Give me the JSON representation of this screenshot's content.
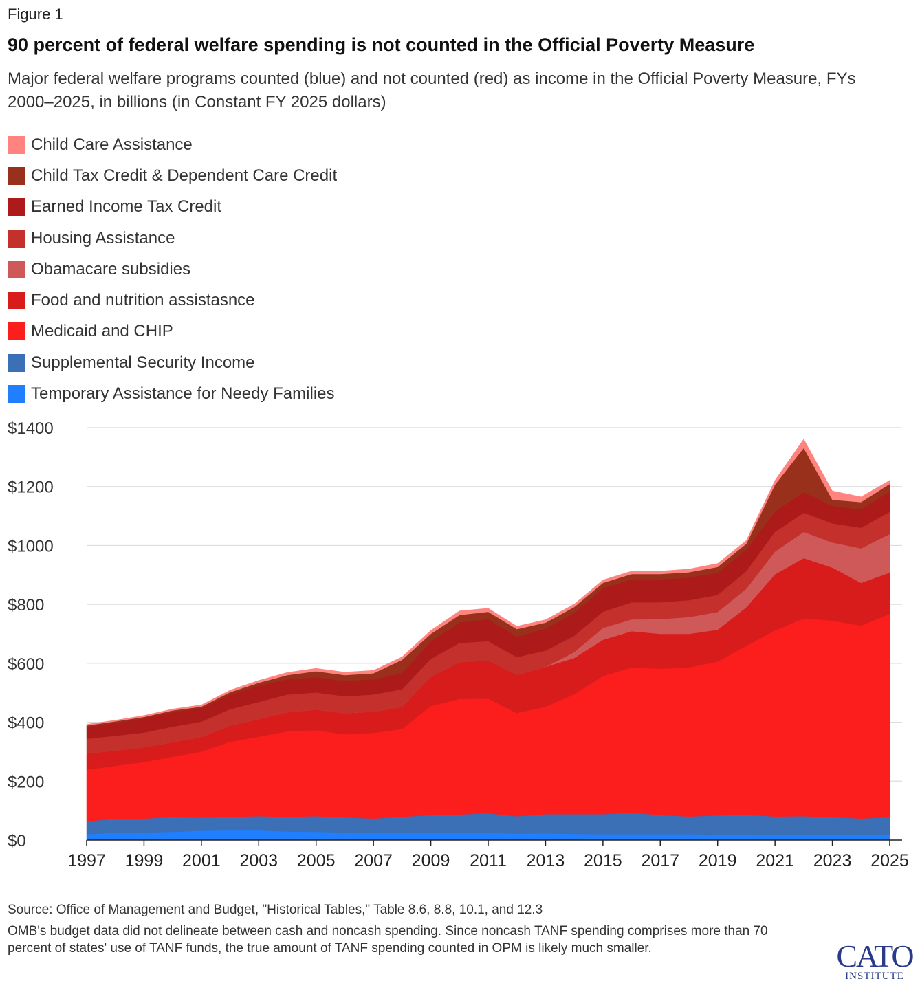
{
  "figure_label": "Figure 1",
  "title": "90 percent of federal welfare spending is not counted in the Official Poverty Measure",
  "subtitle": "Major federal welfare programs counted (blue) and not counted (red) as income in the Official Poverty Measure, FYs 2000–2025, in billions (in Constant FY 2025 dollars)",
  "source": "Source: Office of Management and Budget, \"Historical Tables,\" Table 8.6, 8.8, 10.1, and 12.3",
  "note": "OMB's budget data did not delineate between cash and noncash spending. Since noncash TANF spending comprises more than 70 percent of states' use of TANF funds, the true amount of TANF spending counted in OPM is likely much smaller.",
  "logo": {
    "top": "CATO",
    "bottom": "INSTITUTE"
  },
  "chart_data": {
    "type": "area",
    "stacked": true,
    "x": [
      1997,
      1998,
      1999,
      2000,
      2001,
      2002,
      2003,
      2004,
      2005,
      2006,
      2007,
      2008,
      2009,
      2010,
      2011,
      2012,
      2013,
      2014,
      2015,
      2016,
      2017,
      2018,
      2019,
      2020,
      2021,
      2022,
      2023,
      2024,
      2025
    ],
    "x_ticks": [
      "1997",
      "1999",
      "2001",
      "2003",
      "2005",
      "2007",
      "2009",
      "2011",
      "2013",
      "2015",
      "2017",
      "2019",
      "2021",
      "2023",
      "2025"
    ],
    "y_ticks": [
      "$0",
      "$200",
      "$400",
      "$600",
      "$800",
      "$1000",
      "$1200",
      "$1400"
    ],
    "ylim": [
      0,
      1400
    ],
    "grid": true,
    "legend_position": "top-left",
    "series": [
      {
        "name": "Temporary Assistance for Needy Families",
        "color": "#1f7fff",
        "values": [
          20,
          25,
          26,
          28,
          32,
          33,
          33,
          29,
          28,
          26,
          24,
          24,
          25,
          25,
          24,
          22,
          23,
          21,
          20,
          20,
          20,
          20,
          19,
          19,
          17,
          17,
          17,
          17,
          17
        ]
      },
      {
        "name": "Supplemental Security Income",
        "color": "#3b6fb6",
        "values": [
          44,
          47,
          47,
          50,
          44,
          46,
          48,
          50,
          53,
          51,
          49,
          55,
          60,
          62,
          67,
          59,
          65,
          67,
          68,
          73,
          65,
          60,
          65,
          67,
          63,
          64,
          61,
          56,
          61
        ]
      },
      {
        "name": "Medicaid and CHIP",
        "color": "#fc1d1d",
        "values": [
          175,
          180,
          192,
          205,
          224,
          255,
          270,
          290,
          292,
          282,
          291,
          298,
          370,
          392,
          389,
          350,
          365,
          407,
          469,
          493,
          497,
          506,
          522,
          573,
          632,
          671,
          667,
          655,
          690
        ]
      },
      {
        "name": "Food and nutrition assistasnce",
        "color": "#d81c1c",
        "values": [
          55,
          52,
          50,
          50,
          50,
          55,
          60,
          65,
          70,
          72,
          72,
          75,
          100,
          125,
          130,
          130,
          135,
          123,
          123,
          123,
          118,
          114,
          108,
          131,
          190,
          205,
          180,
          145,
          140
        ]
      },
      {
        "name": "Obamacare subsidies",
        "color": "#cf5959",
        "values": [
          0,
          0,
          0,
          0,
          0,
          0,
          0,
          0,
          0,
          0,
          0,
          0,
          0,
          0,
          0,
          0,
          0,
          20,
          40,
          40,
          50,
          57,
          60,
          63,
          77,
          89,
          85,
          117,
          131
        ]
      },
      {
        "name": "Housing Assistance",
        "color": "#c4302b",
        "values": [
          50,
          50,
          50,
          52,
          52,
          55,
          58,
          60,
          58,
          57,
          58,
          60,
          60,
          65,
          65,
          60,
          55,
          55,
          55,
          58,
          57,
          57,
          58,
          60,
          67,
          65,
          65,
          70,
          75
        ]
      },
      {
        "name": "Earned Income Tax Credit",
        "color": "#ad1a1a",
        "values": [
          40,
          44,
          48,
          50,
          46,
          50,
          55,
          52,
          52,
          52,
          52,
          55,
          60,
          70,
          75,
          70,
          75,
          78,
          80,
          78,
          78,
          77,
          75,
          73,
          70,
          70,
          60,
          62,
          70
        ]
      },
      {
        "name": "Child Tax Credit & Dependent Care Credit",
        "color": "#98301c",
        "values": [
          5,
          5,
          5,
          5,
          5,
          8,
          10,
          14,
          20,
          20,
          20,
          45,
          25,
          25,
          25,
          25,
          20,
          20,
          18,
          18,
          18,
          18,
          20,
          20,
          90,
          150,
          20,
          25,
          25
        ]
      },
      {
        "name": "Child Care Assistance",
        "color": "#ff8480",
        "values": [
          4,
          4,
          5,
          5,
          6,
          7,
          8,
          9,
          10,
          10,
          10,
          10,
          12,
          14,
          12,
          10,
          10,
          10,
          10,
          10,
          10,
          11,
          12,
          11,
          15,
          30,
          30,
          18,
          12
        ]
      }
    ]
  }
}
